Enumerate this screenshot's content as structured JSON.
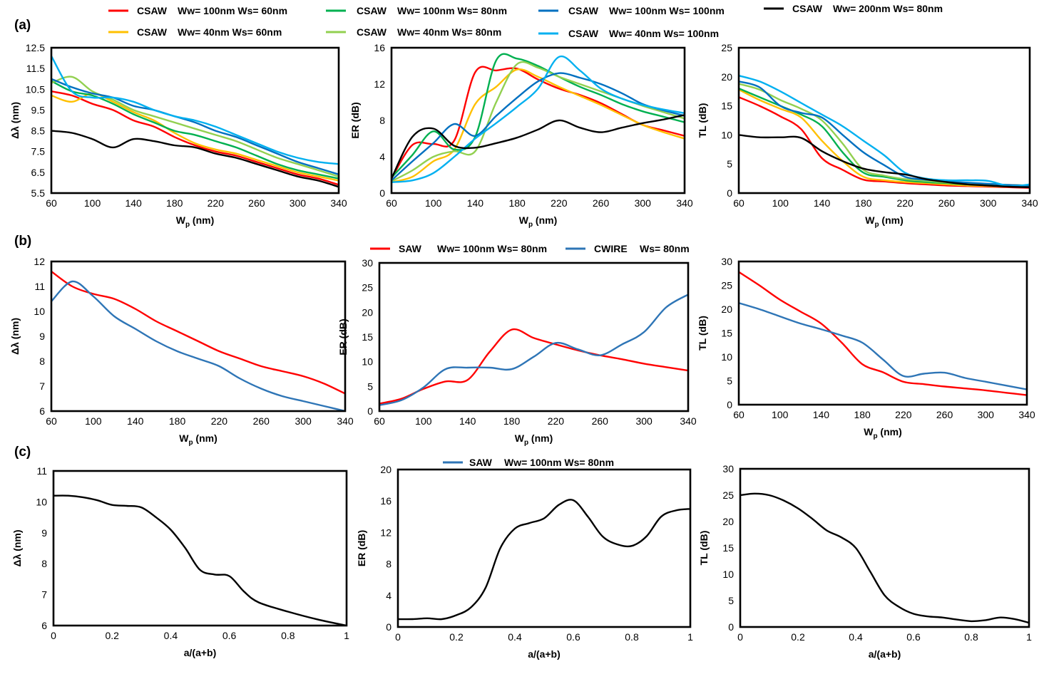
{
  "figure": {
    "panel_labels": [
      "(a)",
      "(b)",
      "(c)"
    ]
  },
  "legends": {
    "a": [
      {
        "name": "CSAW",
        "spec": "Ww= 100nm Ws= 60nm",
        "color": "#ff0000"
      },
      {
        "name": "CSAW",
        "spec": "Ww= 40nm Ws= 60nm",
        "color": "#ffc000"
      },
      {
        "name": "CSAW",
        "spec": "Ww= 100nm Ws= 80nm",
        "color": "#00b050"
      },
      {
        "name": "CSAW",
        "spec": "Ww= 40nm Ws= 80nm",
        "color": "#92d050"
      },
      {
        "name": "CSAW",
        "spec": "Ww= 100nm Ws= 100nm",
        "color": "#0070c0"
      },
      {
        "name": "CSAW",
        "spec": "Ww= 40nm Ws= 100nm",
        "color": "#00b0f0"
      },
      {
        "name": "CSAW",
        "spec": "Ww= 200nm Ws= 80nm",
        "color": "#000000"
      }
    ],
    "b": [
      {
        "name": "SAW",
        "spec": "Ww= 100nm Ws= 80nm",
        "color": "#ff0000"
      },
      {
        "name": "CWIRE",
        "spec": "Ws= 80nm",
        "color": "#2e75b6"
      }
    ],
    "c": [
      {
        "name": "SAW",
        "spec": "Ww= 100nm Ws= 80nm",
        "color": "#2e75b6"
      }
    ]
  },
  "chart_data": [
    {
      "id": "a1",
      "type": "line",
      "title": "",
      "xlabel": "Wp (nm)",
      "ylabel": "Δλ (nm)",
      "xlim": [
        60,
        340
      ],
      "ylim": [
        5.5,
        12.5
      ],
      "xticks": [
        "60",
        "100",
        "140",
        "180",
        "220",
        "260",
        "300",
        "340"
      ],
      "yticks": [
        "5.5",
        "6.5",
        "7.5",
        "8.5",
        "9.5",
        "10.5",
        "11.5",
        "12.5"
      ],
      "x": [
        60,
        80,
        100,
        120,
        140,
        160,
        180,
        200,
        220,
        240,
        260,
        280,
        300,
        320,
        340
      ],
      "series": [
        {
          "name": "CSAW Ww=100nm Ws=60nm",
          "color": "#ff0000",
          "values": [
            10.4,
            10.2,
            9.8,
            9.5,
            9.0,
            8.7,
            8.2,
            7.8,
            7.5,
            7.3,
            7.0,
            6.7,
            6.4,
            6.2,
            5.9
          ]
        },
        {
          "name": "CSAW Ww=40nm Ws=60nm",
          "color": "#ffc000",
          "values": [
            10.2,
            9.9,
            10.3,
            9.9,
            9.4,
            9.0,
            8.4,
            7.9,
            7.6,
            7.4,
            7.1,
            6.8,
            6.5,
            6.3,
            6.1
          ]
        },
        {
          "name": "CSAW Ww=100nm Ws=80nm",
          "color": "#00b050",
          "values": [
            10.9,
            10.4,
            10.2,
            9.8,
            9.3,
            8.9,
            8.5,
            8.3,
            8.0,
            7.7,
            7.3,
            6.9,
            6.6,
            6.4,
            6.2
          ]
        },
        {
          "name": "CSAW Ww=40nm Ws=80nm",
          "color": "#92d050",
          "values": [
            10.8,
            11.1,
            10.4,
            10.0,
            9.5,
            9.2,
            8.9,
            8.6,
            8.3,
            8.0,
            7.6,
            7.2,
            6.9,
            6.6,
            6.3
          ]
        },
        {
          "name": "CSAW Ww=100nm Ws=100nm",
          "color": "#0070c0",
          "values": [
            11.0,
            10.6,
            10.3,
            10.1,
            9.7,
            9.5,
            9.2,
            8.9,
            8.5,
            8.2,
            7.8,
            7.4,
            7.0,
            6.7,
            6.4
          ]
        },
        {
          "name": "CSAW Ww=40nm Ws=100nm",
          "color": "#00b0f0",
          "values": [
            12.1,
            10.4,
            10.1,
            10.1,
            9.9,
            9.5,
            9.2,
            9.0,
            8.7,
            8.3,
            7.9,
            7.5,
            7.2,
            7.0,
            6.9
          ]
        },
        {
          "name": "CSAW Ww=200nm Ws=80nm",
          "color": "#000000",
          "values": [
            8.5,
            8.4,
            8.1,
            7.7,
            8.1,
            8.0,
            7.8,
            7.7,
            7.4,
            7.2,
            6.9,
            6.6,
            6.3,
            6.1,
            5.8
          ]
        }
      ]
    },
    {
      "id": "a2",
      "type": "line",
      "title": "",
      "xlabel": "Wp (nm)",
      "ylabel": "ER (dB)",
      "xlim": [
        60,
        340
      ],
      "ylim": [
        0,
        16
      ],
      "xticks": [
        "60",
        "100",
        "140",
        "180",
        "220",
        "260",
        "300",
        "340"
      ],
      "yticks": [
        "0",
        "4",
        "8",
        "12",
        "16"
      ],
      "x": [
        60,
        80,
        100,
        120,
        140,
        160,
        180,
        200,
        220,
        240,
        260,
        280,
        300,
        320,
        340
      ],
      "series": [
        {
          "name": "CSAW Ww=100nm Ws=60nm",
          "color": "#ff0000",
          "values": [
            1.6,
            5.3,
            5.4,
            5.8,
            13.3,
            13.5,
            13.7,
            12.5,
            11.5,
            10.8,
            9.9,
            8.7,
            7.5,
            6.9,
            6.3
          ]
        },
        {
          "name": "CSAW Ww=40nm Ws=60nm",
          "color": "#ffc000",
          "values": [
            1.2,
            1.8,
            3.5,
            4.8,
            9.8,
            11.7,
            13.6,
            12.8,
            11.7,
            10.7,
            9.7,
            8.6,
            7.5,
            6.7,
            6.0
          ]
        },
        {
          "name": "CSAW Ww=100nm Ws=80nm",
          "color": "#00b050",
          "values": [
            1.7,
            4.2,
            6.8,
            4.8,
            6.2,
            14.6,
            14.8,
            14.0,
            12.8,
            11.7,
            10.8,
            9.8,
            9.0,
            8.4,
            7.8
          ]
        },
        {
          "name": "CSAW Ww=40nm Ws=80nm",
          "color": "#92d050",
          "values": [
            1.3,
            2.5,
            4.0,
            4.6,
            4.6,
            10.0,
            14.2,
            13.8,
            12.8,
            12.0,
            11.2,
            10.4,
            9.6,
            8.9,
            8.2
          ]
        },
        {
          "name": "CSAW Ww=100nm Ws=100nm",
          "color": "#0070c0",
          "values": [
            1.4,
            3.5,
            5.5,
            7.6,
            6.3,
            8.5,
            10.5,
            12.3,
            13.2,
            12.7,
            12.0,
            11.0,
            9.8,
            9.1,
            8.5
          ]
        },
        {
          "name": "CSAW Ww=40nm Ws=100nm",
          "color": "#00b0f0",
          "values": [
            1.2,
            1.4,
            2.2,
            4.0,
            6.0,
            7.7,
            9.5,
            11.5,
            15.0,
            13.5,
            11.5,
            10.4,
            9.7,
            9.2,
            8.8
          ]
        },
        {
          "name": "CSAW Ww=200nm Ws=80nm",
          "color": "#000000",
          "values": [
            1.6,
            6.2,
            7.1,
            5.2,
            5.0,
            5.5,
            6.1,
            7.0,
            8.0,
            7.2,
            6.7,
            7.2,
            7.7,
            8.1,
            8.6
          ]
        }
      ]
    },
    {
      "id": "a3",
      "type": "line",
      "title": "",
      "xlabel": "Wp (nm)",
      "ylabel": "TL (dB)",
      "xlim": [
        60,
        340
      ],
      "ylim": [
        0,
        25
      ],
      "xticks": [
        "60",
        "100",
        "140",
        "180",
        "220",
        "260",
        "300",
        "340"
      ],
      "yticks": [
        "0",
        "5",
        "10",
        "15",
        "20",
        "25"
      ],
      "x": [
        60,
        80,
        100,
        120,
        140,
        160,
        180,
        200,
        220,
        240,
        260,
        280,
        300,
        320,
        340
      ],
      "series": [
        {
          "name": "CSAW Ww=100nm Ws=60nm",
          "color": "#ff0000",
          "values": [
            16.5,
            15.0,
            13.2,
            11.0,
            6.0,
            4.0,
            2.3,
            2.0,
            1.7,
            1.5,
            1.3,
            1.2,
            1.1,
            1.0,
            0.9
          ]
        },
        {
          "name": "CSAW Ww=40nm Ws=60nm",
          "color": "#ffc000",
          "values": [
            17.8,
            16.0,
            14.5,
            13.0,
            9.0,
            5.5,
            2.8,
            2.2,
            1.9,
            1.7,
            1.5,
            1.3,
            1.2,
            1.1,
            1.0
          ]
        },
        {
          "name": "CSAW Ww=100nm Ws=80nm",
          "color": "#00b050",
          "values": [
            18.0,
            16.5,
            15.0,
            13.5,
            11.5,
            7.0,
            3.5,
            2.8,
            2.2,
            1.9,
            1.7,
            1.5,
            1.4,
            1.3,
            1.2
          ]
        },
        {
          "name": "CSAW Ww=40nm Ws=80nm",
          "color": "#92d050",
          "values": [
            18.8,
            17.8,
            16.0,
            14.5,
            12.5,
            8.5,
            4.0,
            3.0,
            2.4,
            2.1,
            1.8,
            1.6,
            1.5,
            1.4,
            1.3
          ]
        },
        {
          "name": "CSAW Ww=100nm Ws=100nm",
          "color": "#0070c0",
          "values": [
            19.2,
            18.2,
            15.0,
            13.8,
            13.0,
            10.0,
            7.0,
            4.8,
            2.8,
            2.3,
            2.0,
            1.8,
            1.6,
            1.4,
            1.3
          ]
        },
        {
          "name": "CSAW Ww=40nm Ws=100nm",
          "color": "#00b0f0",
          "values": [
            20.2,
            19.2,
            17.5,
            15.5,
            13.5,
            11.5,
            9.0,
            6.5,
            3.5,
            2.5,
            2.2,
            2.2,
            2.1,
            1.2,
            1.5
          ]
        },
        {
          "name": "CSAW Ww=200nm Ws=80nm",
          "color": "#000000",
          "values": [
            10.0,
            9.6,
            9.6,
            9.5,
            7.2,
            5.5,
            4.2,
            3.6,
            3.2,
            2.4,
            1.9,
            1.5,
            1.3,
            1.1,
            1.0
          ]
        }
      ]
    },
    {
      "id": "b1",
      "type": "line",
      "title": "",
      "xlabel": "Wp (nm)",
      "ylabel": "Δλ (nm)",
      "xlim": [
        60,
        340
      ],
      "ylim": [
        6,
        12
      ],
      "xticks": [
        "60",
        "100",
        "140",
        "180",
        "220",
        "260",
        "300",
        "340"
      ],
      "yticks": [
        "6",
        "7",
        "8",
        "9",
        "10",
        "11",
        "12"
      ],
      "x": [
        60,
        80,
        100,
        120,
        140,
        160,
        180,
        200,
        220,
        240,
        260,
        280,
        300,
        320,
        340
      ],
      "series": [
        {
          "name": "SAW Ww=100nm Ws=80nm",
          "color": "#ff0000",
          "values": [
            11.6,
            11.0,
            10.7,
            10.5,
            10.1,
            9.6,
            9.2,
            8.8,
            8.4,
            8.1,
            7.8,
            7.6,
            7.4,
            7.1,
            6.7
          ]
        },
        {
          "name": "CWIRE Ws=80nm",
          "color": "#2e75b6",
          "values": [
            10.4,
            11.2,
            10.6,
            9.8,
            9.3,
            8.8,
            8.4,
            8.1,
            7.8,
            7.3,
            6.9,
            6.6,
            6.4,
            6.2,
            6.0
          ]
        }
      ]
    },
    {
      "id": "b2",
      "type": "line",
      "title": "",
      "xlabel": "Wp (nm)",
      "ylabel": "ER (dB)",
      "xlim": [
        60,
        340
      ],
      "ylim": [
        0,
        30
      ],
      "xticks": [
        "60",
        "100",
        "140",
        "180",
        "220",
        "260",
        "300",
        "340"
      ],
      "yticks": [
        "0",
        "5",
        "10",
        "15",
        "20",
        "25",
        "30"
      ],
      "x": [
        60,
        80,
        100,
        120,
        140,
        160,
        180,
        200,
        220,
        240,
        260,
        280,
        300,
        320,
        340
      ],
      "series": [
        {
          "name": "SAW Ww=100nm Ws=80nm",
          "color": "#ff0000",
          "values": [
            1.5,
            2.5,
            4.5,
            6.0,
            6.3,
            12.0,
            16.5,
            14.8,
            13.5,
            12.3,
            11.3,
            10.5,
            9.6,
            8.9,
            8.2
          ]
        },
        {
          "name": "CWIRE Ws=80nm",
          "color": "#2e75b6",
          "values": [
            1.2,
            2.2,
            4.8,
            8.5,
            8.8,
            8.8,
            8.5,
            11.0,
            13.8,
            12.5,
            11.3,
            13.5,
            16.0,
            21.0,
            23.6
          ]
        }
      ]
    },
    {
      "id": "b3",
      "type": "line",
      "title": "",
      "xlabel": "Wp (nm)",
      "ylabel": "TL (dB)",
      "xlim": [
        60,
        340
      ],
      "ylim": [
        0,
        30
      ],
      "xticks": [
        "60",
        "100",
        "140",
        "180",
        "220",
        "260",
        "300",
        "340"
      ],
      "yticks": [
        "0",
        "5",
        "10",
        "15",
        "20",
        "25",
        "30"
      ],
      "x": [
        60,
        80,
        100,
        120,
        140,
        160,
        180,
        200,
        220,
        240,
        260,
        280,
        300,
        320,
        340
      ],
      "series": [
        {
          "name": "SAW Ww=100nm Ws=80nm",
          "color": "#ff0000",
          "values": [
            27.8,
            25.0,
            22.0,
            19.5,
            17.0,
            13.0,
            8.5,
            6.8,
            4.8,
            4.3,
            3.8,
            3.4,
            3.0,
            2.5,
            2.0
          ]
        },
        {
          "name": "CWIRE Ws=80nm",
          "color": "#2e75b6",
          "values": [
            21.3,
            20.0,
            18.5,
            17.0,
            15.8,
            14.5,
            13.0,
            9.5,
            6.0,
            6.5,
            6.7,
            5.6,
            4.8,
            4.0,
            3.2
          ]
        }
      ]
    },
    {
      "id": "c1",
      "type": "line",
      "title": "",
      "xlabel": "a/(a+b)",
      "ylabel": "Δλ (nm)",
      "xlim": [
        0,
        1
      ],
      "ylim": [
        6,
        11
      ],
      "xticks": [
        "0",
        "0.2",
        "0.4",
        "0.6",
        "0.8",
        "1"
      ],
      "yticks": [
        "6",
        "7",
        "8",
        "9",
        "10",
        "11"
      ],
      "x": [
        0,
        0.05,
        0.1,
        0.15,
        0.2,
        0.25,
        0.3,
        0.35,
        0.4,
        0.45,
        0.5,
        0.55,
        0.6,
        0.65,
        0.7,
        0.8,
        0.9,
        1.0
      ],
      "series": [
        {
          "name": "SAW Ww=100nm Ws=80nm",
          "color": "#000000",
          "values": [
            10.2,
            10.2,
            10.15,
            10.05,
            9.9,
            9.87,
            9.82,
            9.5,
            9.1,
            8.5,
            7.8,
            7.65,
            7.6,
            7.1,
            6.75,
            6.45,
            6.2,
            6.0
          ]
        }
      ]
    },
    {
      "id": "c2",
      "type": "line",
      "title": "",
      "xlabel": "a/(a+b)",
      "ylabel": "ER (dB)",
      "xlim": [
        0,
        1
      ],
      "ylim": [
        0,
        20
      ],
      "xticks": [
        "0",
        "0.2",
        "0.4",
        "0.6",
        "0.8",
        "1"
      ],
      "yticks": [
        "0",
        "4",
        "8",
        "12",
        "16",
        "20"
      ],
      "x": [
        0,
        0.05,
        0.1,
        0.15,
        0.2,
        0.25,
        0.3,
        0.35,
        0.4,
        0.45,
        0.5,
        0.55,
        0.6,
        0.65,
        0.7,
        0.75,
        0.8,
        0.85,
        0.9,
        0.95,
        1.0
      ],
      "series": [
        {
          "name": "SAW Ww=100nm Ws=80nm",
          "color": "#000000",
          "values": [
            1.0,
            1.0,
            1.1,
            1.0,
            1.5,
            2.5,
            5.0,
            10.0,
            12.5,
            13.2,
            13.8,
            15.5,
            16.1,
            14.0,
            11.5,
            10.5,
            10.3,
            11.5,
            14.0,
            14.8,
            15.0
          ]
        }
      ]
    },
    {
      "id": "c3",
      "type": "line",
      "title": "",
      "xlabel": "a/(a+b)",
      "ylabel": "TL (dB)",
      "xlim": [
        0,
        1
      ],
      "ylim": [
        0,
        30
      ],
      "xticks": [
        "0",
        "0.2",
        "0.4",
        "0.6",
        "0.8",
        "1"
      ],
      "yticks": [
        "0",
        "5",
        "10",
        "15",
        "20",
        "25",
        "30"
      ],
      "x": [
        0,
        0.05,
        0.1,
        0.15,
        0.2,
        0.25,
        0.3,
        0.35,
        0.4,
        0.45,
        0.5,
        0.55,
        0.6,
        0.65,
        0.7,
        0.75,
        0.8,
        0.85,
        0.9,
        0.95,
        1.0
      ],
      "series": [
        {
          "name": "SAW Ww=100nm Ws=80nm",
          "color": "#000000",
          "values": [
            25.0,
            25.3,
            25.0,
            24.0,
            22.5,
            20.5,
            18.3,
            17.0,
            15.0,
            10.5,
            6.0,
            3.8,
            2.5,
            2.0,
            1.8,
            1.4,
            1.1,
            1.3,
            1.8,
            1.5,
            0.8
          ]
        }
      ]
    }
  ]
}
